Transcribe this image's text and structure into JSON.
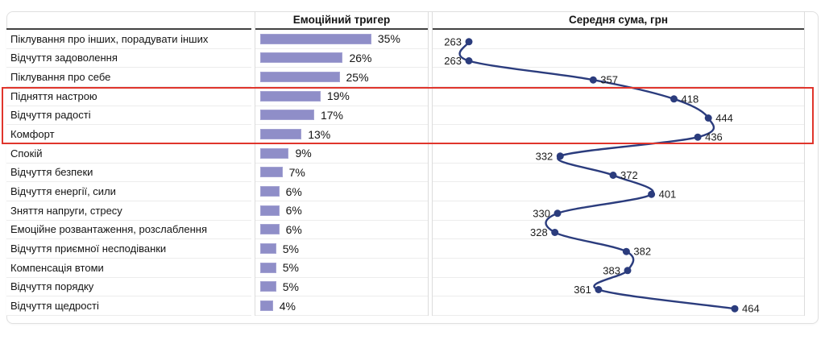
{
  "table": {
    "columns": {
      "category_header": "",
      "trigger_header": "Емоційний тригер",
      "sum_header": "Середня сума, грн"
    },
    "rows": [
      {
        "label": "Піклування про інших, порадувати інших",
        "trigger_pct": 35,
        "avg_sum": 263,
        "sum_label_side": "left",
        "highlighted": false
      },
      {
        "label": "Відчуття задоволення",
        "trigger_pct": 26,
        "avg_sum": 263,
        "sum_label_side": "left",
        "highlighted": false
      },
      {
        "label": "Піклування про себе",
        "trigger_pct": 25,
        "avg_sum": 357,
        "sum_label_side": "right",
        "highlighted": false
      },
      {
        "label": "Підняття настрою",
        "trigger_pct": 19,
        "avg_sum": 418,
        "sum_label_side": "right",
        "highlighted": true
      },
      {
        "label": "Відчуття радості",
        "trigger_pct": 17,
        "avg_sum": 444,
        "sum_label_side": "right",
        "highlighted": true
      },
      {
        "label": "Комфорт",
        "trigger_pct": 13,
        "avg_sum": 436,
        "sum_label_side": "right",
        "highlighted": true
      },
      {
        "label": "Спокій",
        "trigger_pct": 9,
        "avg_sum": 332,
        "sum_label_side": "left",
        "highlighted": false
      },
      {
        "label": "Відчуття безпеки",
        "trigger_pct": 7,
        "avg_sum": 372,
        "sum_label_side": "right",
        "highlighted": false
      },
      {
        "label": "Відчуття енергії, сили",
        "trigger_pct": 6,
        "avg_sum": 401,
        "sum_label_side": "right",
        "highlighted": false
      },
      {
        "label": "Зняття напруги, стресу",
        "trigger_pct": 6,
        "avg_sum": 330,
        "sum_label_side": "left",
        "highlighted": false
      },
      {
        "label": "Емоційне розвантаження, розслаблення",
        "trigger_pct": 6,
        "avg_sum": 328,
        "sum_label_side": "left",
        "highlighted": false
      },
      {
        "label": "Відчуття приємної несподіванки",
        "trigger_pct": 5,
        "avg_sum": 382,
        "sum_label_side": "right",
        "highlighted": false
      },
      {
        "label": "Компенсація втоми",
        "trigger_pct": 5,
        "avg_sum": 383,
        "sum_label_side": "left",
        "highlighted": false
      },
      {
        "label": "Відчуття порядку",
        "trigger_pct": 5,
        "avg_sum": 361,
        "sum_label_side": "left",
        "highlighted": false
      },
      {
        "label": "Відчуття щедрості",
        "trigger_pct": 4,
        "avg_sum": 464,
        "sum_label_side": "right",
        "highlighted": false
      }
    ],
    "highlight_color": "#e0352c"
  },
  "colors": {
    "bar_fill": "#8f8ec8",
    "line_stroke": "#2b3c7d",
    "header_rule": "#424242",
    "grid_line": "#ececec"
  },
  "chart_data": [
    {
      "type": "bar",
      "orientation": "horizontal",
      "title": "Емоційний тригер",
      "categories": [
        "Піклування про інших, порадувати інших",
        "Відчуття задоволення",
        "Піклування про себе",
        "Підняття настрою",
        "Відчуття радості",
        "Комфорт",
        "Спокій",
        "Відчуття безпеки",
        "Відчуття енергії, сили",
        "Зняття напруги, стресу",
        "Емоційне розвантаження, розслаблення",
        "Відчуття приємної несподіванки",
        "Компенсація втоми",
        "Відчуття порядку",
        "Відчуття щедрості"
      ],
      "values": [
        35,
        26,
        25,
        19,
        17,
        13,
        9,
        7,
        6,
        6,
        6,
        5,
        5,
        5,
        4
      ],
      "unit": "%",
      "xlim": [
        0,
        40
      ],
      "grid": false,
      "data_labels": true
    },
    {
      "type": "line",
      "orientation": "vertical-categories",
      "title": "Середня сума, грн",
      "categories": [
        "Піклування про інших, порадувати інших",
        "Відчуття задоволення",
        "Піклування про себе",
        "Підняття настрою",
        "Відчуття радості",
        "Комфорт",
        "Спокій",
        "Відчуття безпеки",
        "Відчуття енергії, сили",
        "Зняття напруги, стресу",
        "Емоційне розвантаження, розслаблення",
        "Відчуття приємної несподіванки",
        "Компенсація втоми",
        "Відчуття порядку",
        "Відчуття щедрості"
      ],
      "values": [
        263,
        263,
        357,
        418,
        444,
        436,
        332,
        372,
        401,
        330,
        328,
        382,
        383,
        361,
        464
      ],
      "unit": "грн",
      "xlim": [
        236,
        520
      ],
      "grid": false,
      "data_labels": true,
      "smooth": true,
      "markers": true,
      "annotation": "rows 4-6 outlined in red (highlighted segment)"
    }
  ]
}
